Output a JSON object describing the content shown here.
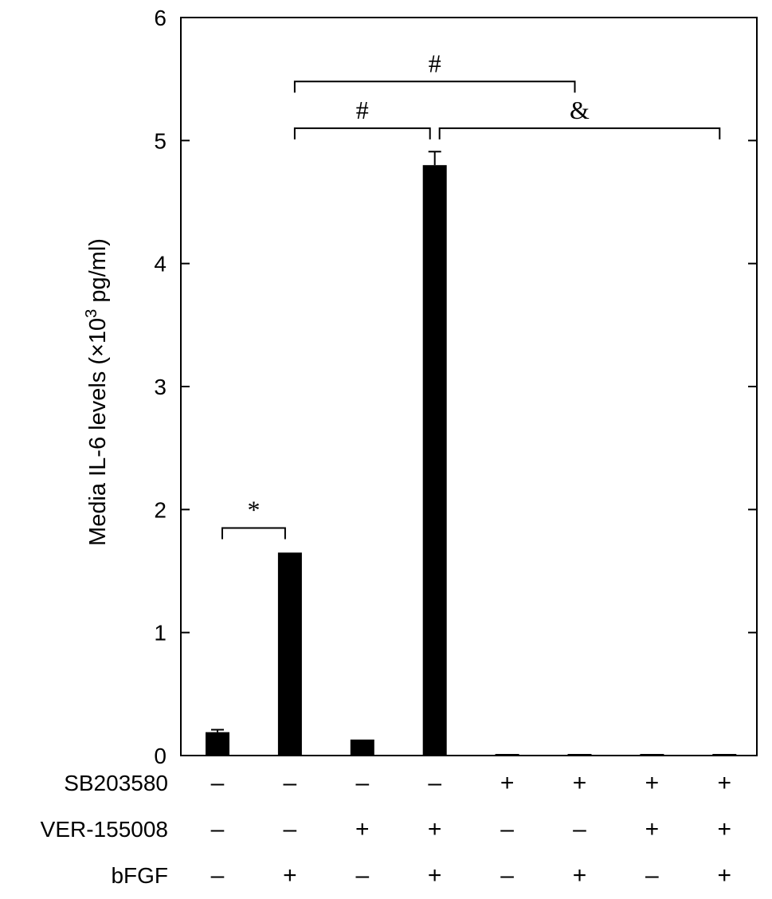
{
  "chart_data": {
    "type": "bar",
    "ylabel": "Media IL-6 levels (×10",
    "ylabel_sup": "3",
    "ylabel_tail": " pg/ml)",
    "ylim": [
      0,
      6
    ],
    "yticks": [
      "0",
      "1",
      "2",
      "3",
      "4",
      "5",
      "6"
    ],
    "values": [
      0.19,
      1.65,
      0.13,
      4.8,
      0.01,
      0.01,
      0.01,
      0.01
    ],
    "errors": [
      0.02,
      0.0,
      0.0,
      0.11,
      0.0,
      0.0,
      0.0,
      0.0
    ],
    "bar_color": "#000000",
    "conditions": [
      {
        "name": "SB203580",
        "signs": [
          "–",
          "–",
          "–",
          "–",
          "+",
          "+",
          "+",
          "+"
        ]
      },
      {
        "name": "VER-155008",
        "signs": [
          "–",
          "–",
          "+",
          "+",
          "–",
          "–",
          "+",
          "+"
        ]
      },
      {
        "name": "bFGF",
        "signs": [
          "–",
          "+",
          "–",
          "+",
          "–",
          "+",
          "–",
          "+"
        ]
      }
    ],
    "annotations": [
      {
        "from": 0,
        "to": 1,
        "level": 1.85,
        "label": "*"
      },
      {
        "from": 1,
        "to": 3,
        "level": 5.1,
        "label": "#"
      },
      {
        "from": 1,
        "to": 5,
        "level": 5.48,
        "label": "#"
      },
      {
        "from": 3,
        "to": 7,
        "level": 5.1,
        "label": "&"
      }
    ]
  }
}
